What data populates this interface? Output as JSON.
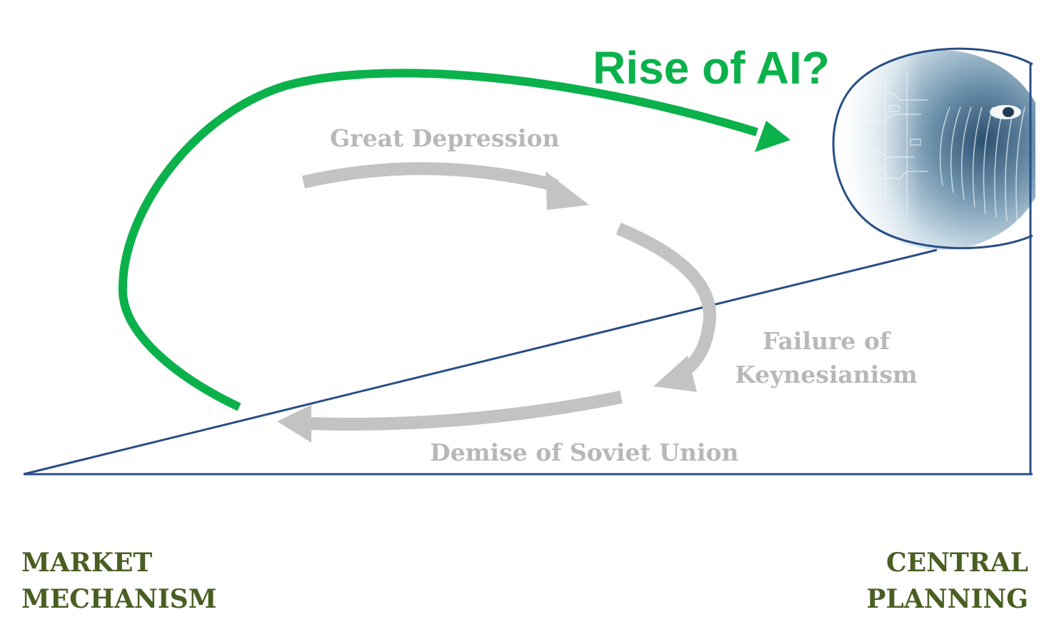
{
  "title": "Rise of AI?",
  "events": {
    "great_depression": "Great Depression",
    "failure_keynesianism_line1": "Failure of",
    "failure_keynesianism_line2": "Keynesianism",
    "demise_soviet_union": "Demise of Soviet Union"
  },
  "axis": {
    "left_line1": "MARKET",
    "left_line2": "MECHANISM",
    "right_line1": "CENTRAL",
    "right_line2": "PLANNING"
  },
  "colors": {
    "green_arrow": "#0bb14b",
    "grey_arrow": "#c3c3c3",
    "grey_text": "#b8b8b8",
    "axis_line": "#284e85",
    "axis_label": "#4a5e22",
    "title": "#0bb14b"
  },
  "image": {
    "icon": "ai-face-icon"
  }
}
